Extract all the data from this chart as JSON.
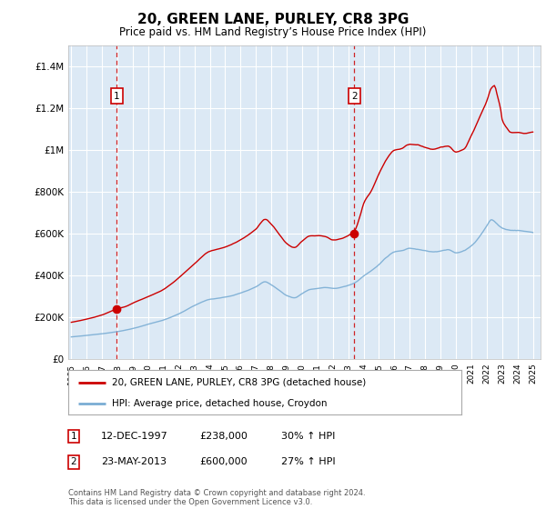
{
  "title": "20, GREEN LANE, PURLEY, CR8 3PG",
  "subtitle": "Price paid vs. HM Land Registry’s House Price Index (HPI)",
  "title_fontsize": 11,
  "subtitle_fontsize": 8.5,
  "background_color": "#ffffff",
  "plot_bg_color": "#dce9f5",
  "grid_color": "#ffffff",
  "red_color": "#cc0000",
  "blue_color": "#7aadd4",
  "dashed_color": "#cc0000",
  "purchase1_year": 1997.95,
  "purchase1_price": 238000,
  "purchase2_year": 2013.39,
  "purchase2_price": 600000,
  "legend_label1": "20, GREEN LANE, PURLEY, CR8 3PG (detached house)",
  "legend_label2": "HPI: Average price, detached house, Croydon",
  "footer": "Contains HM Land Registry data © Crown copyright and database right 2024.\nThis data is licensed under the Open Government Licence v3.0.",
  "xmin": 1994.8,
  "xmax": 2025.5,
  "ymin": 0,
  "ymax": 1500000,
  "yticks": [
    0,
    200000,
    400000,
    600000,
    800000,
    1000000,
    1200000,
    1400000
  ],
  "ytick_labels": [
    "£0",
    "£200K",
    "£400K",
    "£600K",
    "£800K",
    "£1M",
    "£1.2M",
    "£1.4M"
  ]
}
